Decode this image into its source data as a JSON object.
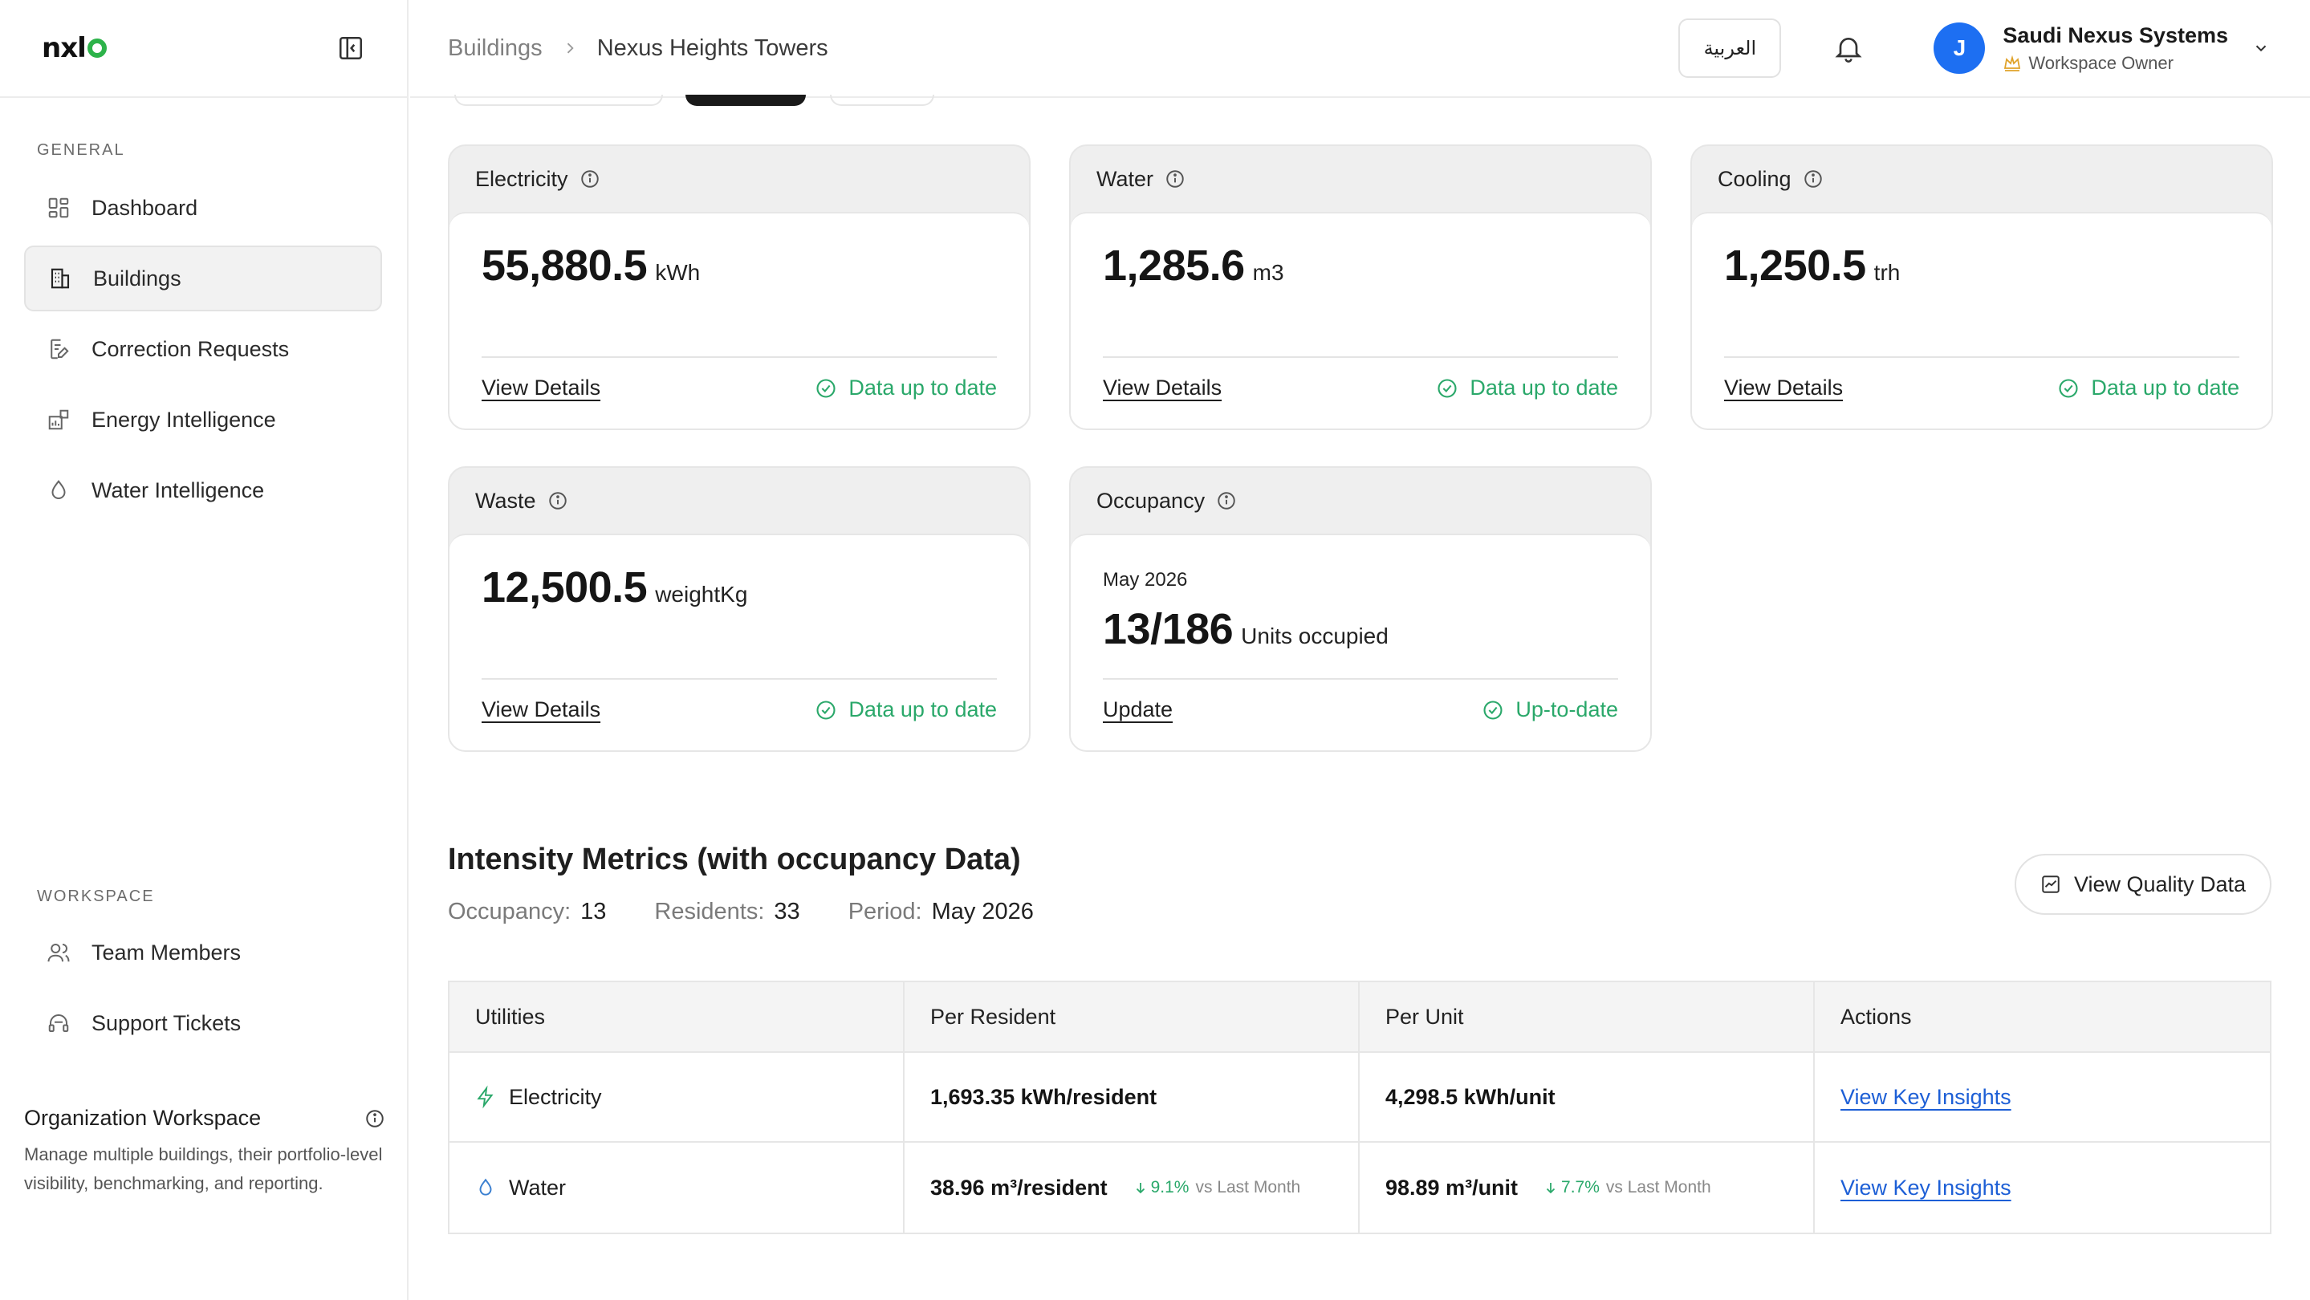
{
  "brand": {
    "logo_text": "nxl"
  },
  "sidebar": {
    "general_label": "GENERAL",
    "general_items": [
      {
        "label": "Dashboard",
        "icon": "dashboard-icon"
      },
      {
        "label": "Buildings",
        "icon": "building-icon",
        "active": true
      },
      {
        "label": "Correction Requests",
        "icon": "document-edit-icon"
      },
      {
        "label": "Energy Intelligence",
        "icon": "energy-chart-icon"
      },
      {
        "label": "Water Intelligence",
        "icon": "droplet-icon"
      }
    ],
    "workspace_label": "WORKSPACE",
    "workspace_items": [
      {
        "label": "Team Members",
        "icon": "users-icon"
      },
      {
        "label": "Support Tickets",
        "icon": "headset-icon"
      }
    ],
    "org": {
      "title": "Organization Workspace",
      "description": "Manage multiple buildings, their portfolio-level visibility, benchmarking, and reporting."
    }
  },
  "header": {
    "breadcrumb": {
      "parent": "Buildings",
      "current": "Nexus Heights Towers"
    },
    "language_button": "العربية",
    "user": {
      "initial": "J",
      "name": "Saudi Nexus Systems",
      "role": "Workspace Owner"
    }
  },
  "cards": {
    "electricity": {
      "title": "Electricity",
      "value": "55,880.5",
      "unit": "kWh",
      "link": "View Details",
      "status": "Data up to date"
    },
    "water": {
      "title": "Water",
      "value": "1,285.6",
      "unit": "m3",
      "link": "View Details",
      "status": "Data up to date"
    },
    "cooling": {
      "title": "Cooling",
      "value": "1,250.5",
      "unit": "trh",
      "link": "View Details",
      "status": "Data up to date"
    },
    "waste": {
      "title": "Waste",
      "value": "12,500.5",
      "unit": "weightKg",
      "link": "View Details",
      "status": "Data up to date"
    },
    "occupancy": {
      "title": "Occupancy",
      "month": "May 2026",
      "value": "13/186",
      "unit": "Units occupied",
      "link": "Update",
      "status": "Up-to-date"
    }
  },
  "intensity": {
    "title": "Intensity Metrics (with occupancy Data)",
    "occupancy_label": "Occupancy:",
    "occupancy_value": "13",
    "residents_label": "Residents:",
    "residents_value": "33",
    "period_label": "Period:",
    "period_value": "May 2026",
    "quality_button": "View Quality Data",
    "columns": [
      "Utilities",
      "Per Resident",
      "Per Unit",
      "Actions"
    ],
    "rows": [
      {
        "utility": "Electricity",
        "icon": "lightning-icon",
        "per_resident": "1,693.35 kWh/resident",
        "per_unit": "4,298.5 kWh/unit",
        "action": "View Key Insights"
      },
      {
        "utility": "Water",
        "icon": "droplet-icon",
        "per_resident": "38.96 m³/resident",
        "resident_delta": "9.1%",
        "per_unit": "98.89 m³/unit",
        "unit_delta": "7.7%",
        "delta_suffix": "vs Last Month",
        "action": "View Key Insights"
      }
    ]
  },
  "colors": {
    "accent_green": "#2aa86a",
    "avatar_blue": "#1d6ff2",
    "link_blue": "#1d5fd6",
    "logo_green": "#2db34a"
  }
}
